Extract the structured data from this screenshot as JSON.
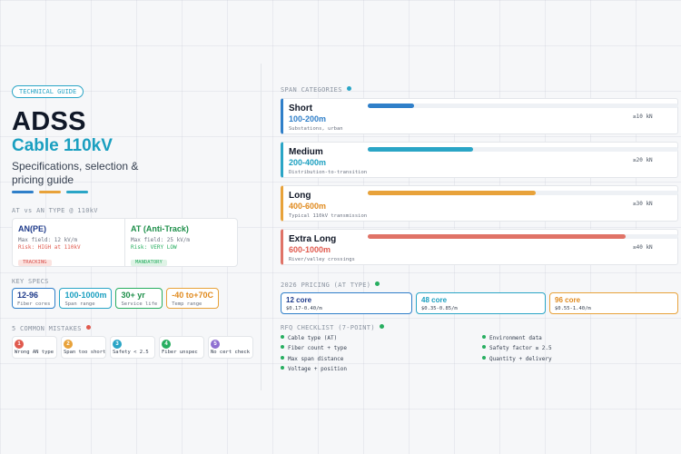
{
  "header": {
    "tag": "TECHNICAL GUIDE",
    "title": "ADSS",
    "subtitle": "Cable 110kV",
    "description": "Specifications, selection & pricing guide"
  },
  "colors": {
    "blue": "#2f7fc9",
    "orange": "#e8a23a",
    "cyan": "#2aa5c6",
    "red": "#e07367",
    "green": "#27ae60",
    "purple": "#8e6fd1"
  },
  "at_vs_an": {
    "label": "AT vs AN TYPE @ 110kV",
    "an": {
      "title": "AN(PE)",
      "field": "Max field: 12 kV/m",
      "risk": "Risk: HIGH at 110kV",
      "badge": "TRACKING"
    },
    "at": {
      "title": "AT (Anti-Track)",
      "field": "Max field: 25 kV/m",
      "risk": "Risk: VERY LOW",
      "badge": "MANDATORY"
    }
  },
  "key_specs": {
    "label": "KEY SPECS",
    "items": [
      {
        "value": "12-96",
        "label": "Fiber cores"
      },
      {
        "value": "100-1000m",
        "label": "Span range"
      },
      {
        "value": "30+ yr",
        "label": "Service life"
      },
      {
        "value": "-40 to+70C",
        "label": "Temp range"
      }
    ]
  },
  "mistakes": {
    "label": "5 COMMON MISTAKES",
    "items": [
      {
        "num": "1",
        "text": "Wrong AN type"
      },
      {
        "num": "2",
        "text": "Span too short"
      },
      {
        "num": "3",
        "text": "Safety < 2.5"
      },
      {
        "num": "4",
        "text": "Fiber unspec"
      },
      {
        "num": "5",
        "text": "No cert check"
      }
    ]
  },
  "span_categories": {
    "label": "SPAN CATEGORIES",
    "items": [
      {
        "name": "Short",
        "range": "100-200m",
        "desc": "Substations, urban",
        "load": "≥10 kN",
        "level": 0.15
      },
      {
        "name": "Medium",
        "range": "200-400m",
        "desc": "Distribution-to-transition",
        "load": "≥20 kN",
        "level": 0.34
      },
      {
        "name": "Long",
        "range": "400-600m",
        "desc": "Typical 110kV transmission",
        "load": "≥30 kN",
        "level": 0.54
      },
      {
        "name": "Extra Long",
        "range": "600-1000m",
        "desc": "River/valley crossings",
        "load": "≥40 kN",
        "level": 0.83
      }
    ]
  },
  "pricing": {
    "label": "2026 PRICING (AT TYPE)",
    "items": [
      {
        "cores": "12 core",
        "price": "$0.17-0.40/m"
      },
      {
        "cores": "48 core",
        "price": "$0.35-0.85/m"
      },
      {
        "cores": "96 core",
        "price": "$0.55-1.40/m"
      }
    ]
  },
  "rfq": {
    "label": "RFQ CHECKLIST (7-POINT)",
    "left": [
      "Cable type (AT)",
      "Fiber count + type",
      "Max span distance",
      "Voltage + position"
    ],
    "right": [
      "Environment data",
      "Safety factor ≥ 2.5",
      "Quantity + delivery"
    ]
  }
}
